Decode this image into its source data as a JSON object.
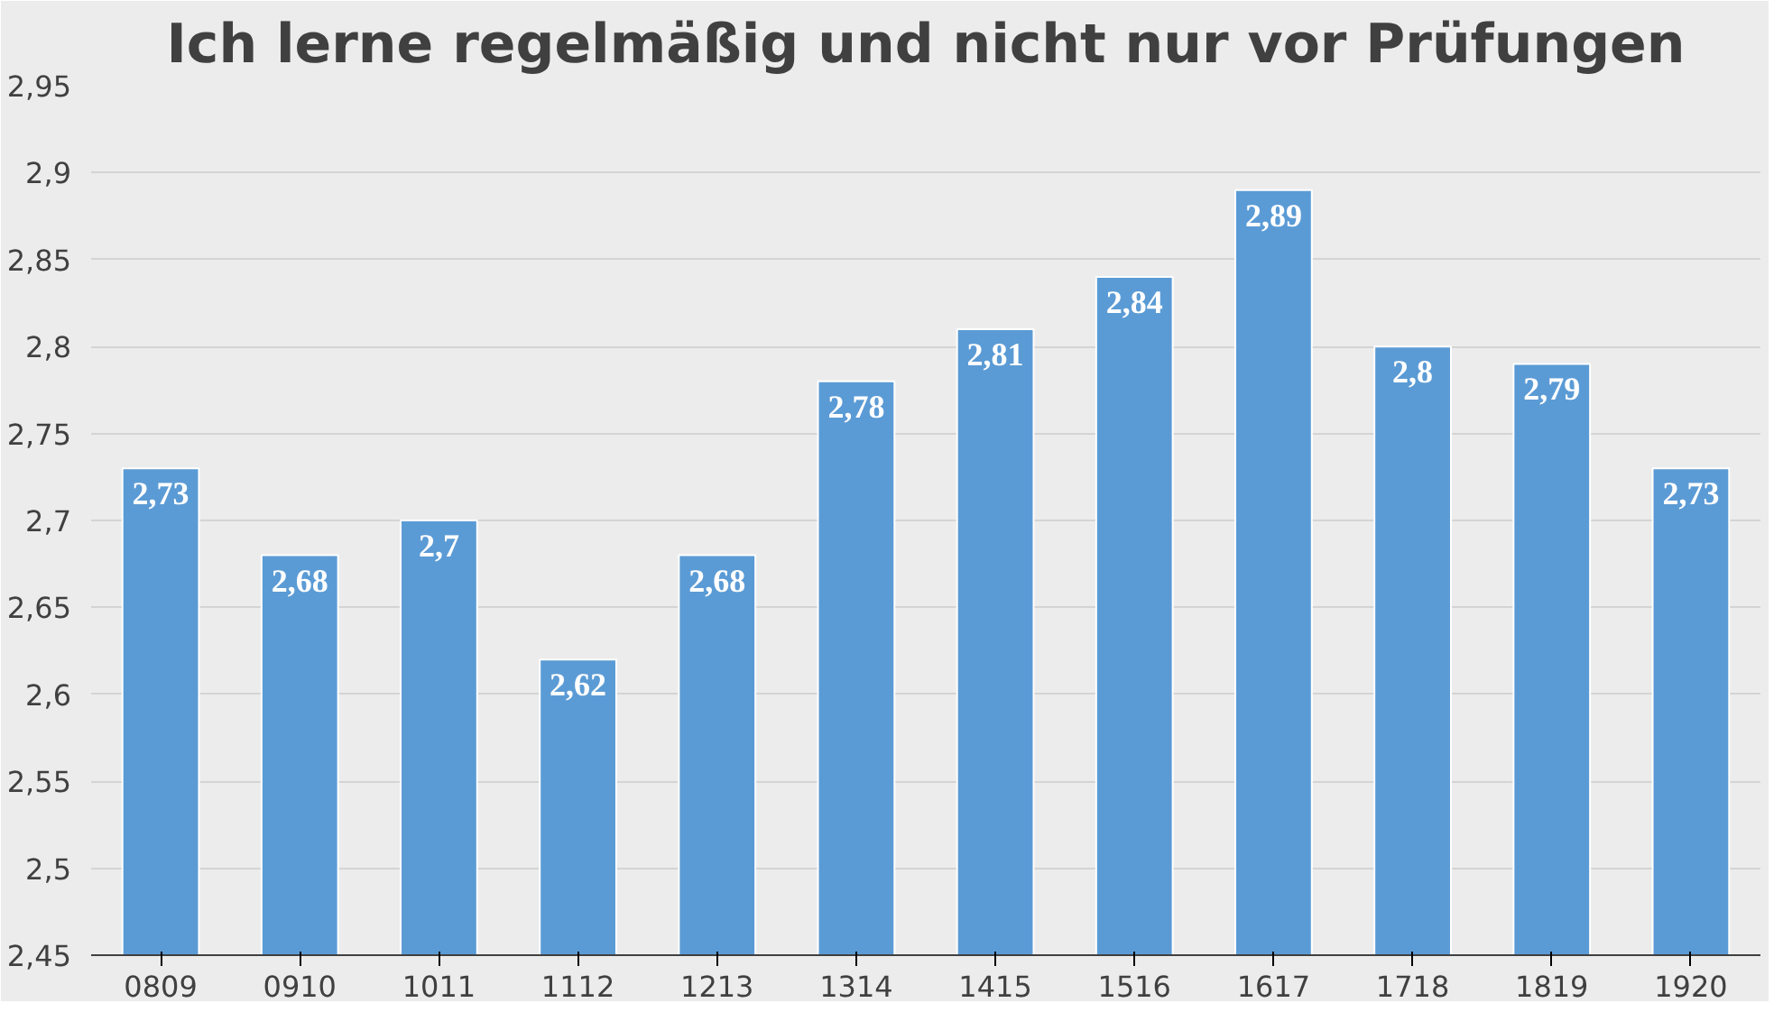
{
  "chart_data": {
    "type": "bar",
    "title": "Ich lerne regelmäßig und nicht nur vor Prüfungen",
    "categories": [
      "0809",
      "0910",
      "1011",
      "1112",
      "1213",
      "1314",
      "1415",
      "1516",
      "1617",
      "1718",
      "1819",
      "1920"
    ],
    "values": [
      2.73,
      2.68,
      2.7,
      2.62,
      2.68,
      2.78,
      2.81,
      2.84,
      2.89,
      2.8,
      2.79,
      2.73
    ],
    "value_labels": [
      "2,73",
      "2,68",
      "2,7",
      "2,62",
      "2,68",
      "2,78",
      "2,81",
      "2,84",
      "2,89",
      "2,8",
      "2,79",
      "2,73"
    ],
    "color": "#5b9bd5",
    "ylim": [
      2.45,
      2.95
    ],
    "yticks": [
      {
        "value": 2.45,
        "label": "2,45"
      },
      {
        "value": 2.5,
        "label": "2,5"
      },
      {
        "value": 2.55,
        "label": "2,55"
      },
      {
        "value": 2.6,
        "label": "2,6"
      },
      {
        "value": 2.65,
        "label": "2,65"
      },
      {
        "value": 2.7,
        "label": "2,7"
      },
      {
        "value": 2.75,
        "label": "2,75"
      },
      {
        "value": 2.8,
        "label": "2,8"
      },
      {
        "value": 2.85,
        "label": "2,85"
      },
      {
        "value": 2.9,
        "label": "2,9"
      },
      {
        "value": 2.95,
        "label": "2,95"
      }
    ],
    "grid": "y"
  }
}
